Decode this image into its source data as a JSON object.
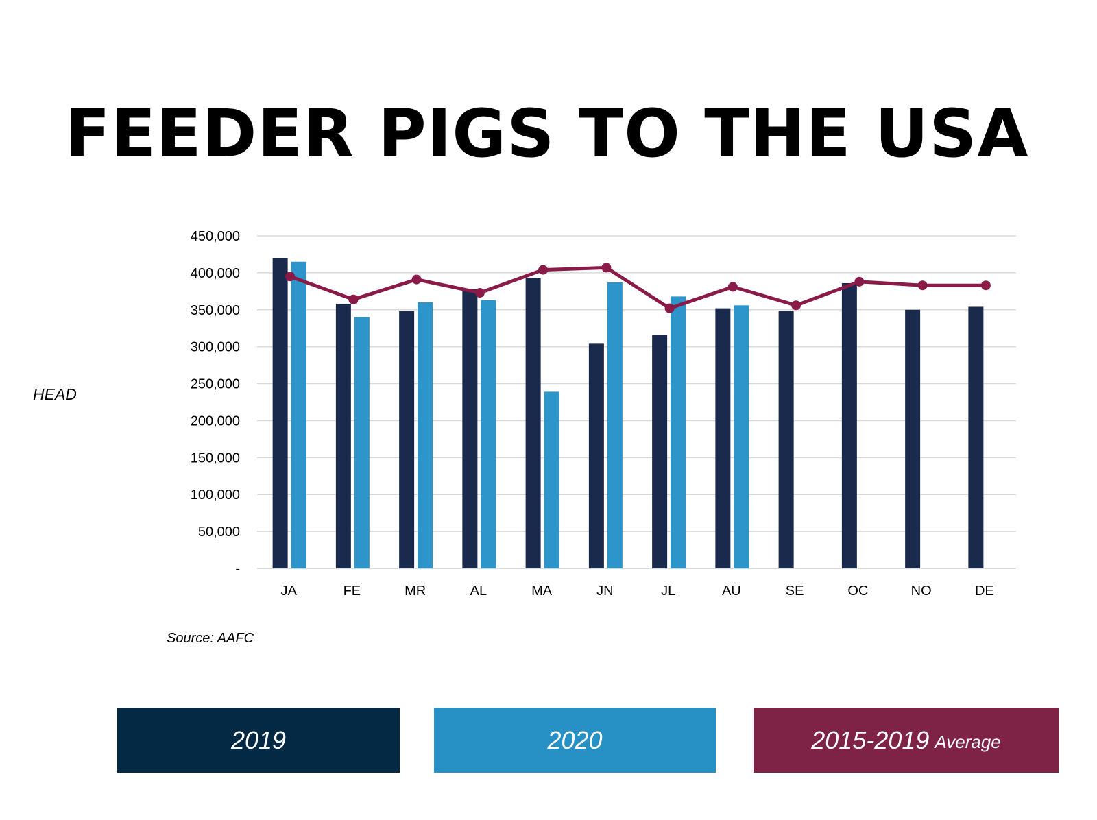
{
  "title": "FEEDER PIGS TO THE USA",
  "source": "Source: AAFC",
  "colors": {
    "s2019": "#1a2a4c",
    "s2020": "#2d95c9",
    "avg": "#8a1a48",
    "legend2019": "#032944",
    "legend2020": "#2791c6",
    "legendAvg": "#7f2346",
    "grid": "#d9d9d9"
  },
  "legend": {
    "s2019": "2019",
    "s2020": "2020",
    "avg_main": "2015-2019",
    "avg_sub": "Average"
  },
  "chart_data": {
    "type": "bar",
    "ylabel": "HEAD",
    "ylim": [
      0,
      450000
    ],
    "yticks": [
      0,
      50000,
      100000,
      150000,
      200000,
      250000,
      300000,
      350000,
      400000,
      450000
    ],
    "ytick_labels": [
      "-",
      "50,000",
      "100,000",
      "150,000",
      "200,000",
      "250,000",
      "300,000",
      "350,000",
      "400,000",
      "450,000"
    ],
    "grid": true,
    "categories": [
      "JA",
      "FE",
      "MR",
      "AL",
      "MA",
      "JN",
      "JL",
      "AU",
      "SE",
      "OC",
      "NO",
      "DE"
    ],
    "series": [
      {
        "name": "2019",
        "type": "bar",
        "values": [
          420000,
          358000,
          348000,
          378000,
          393000,
          304000,
          316000,
          352000,
          348000,
          386000,
          350000,
          354000
        ]
      },
      {
        "name": "2020",
        "type": "bar",
        "values": [
          415000,
          340000,
          360000,
          363000,
          239000,
          387000,
          368000,
          356000,
          null,
          null,
          null,
          null
        ]
      },
      {
        "name": "2015-2019 Average",
        "type": "line",
        "values": [
          395000,
          364000,
          391000,
          373000,
          404000,
          407000,
          352000,
          381000,
          356000,
          388000,
          383000,
          383000
        ]
      }
    ]
  }
}
